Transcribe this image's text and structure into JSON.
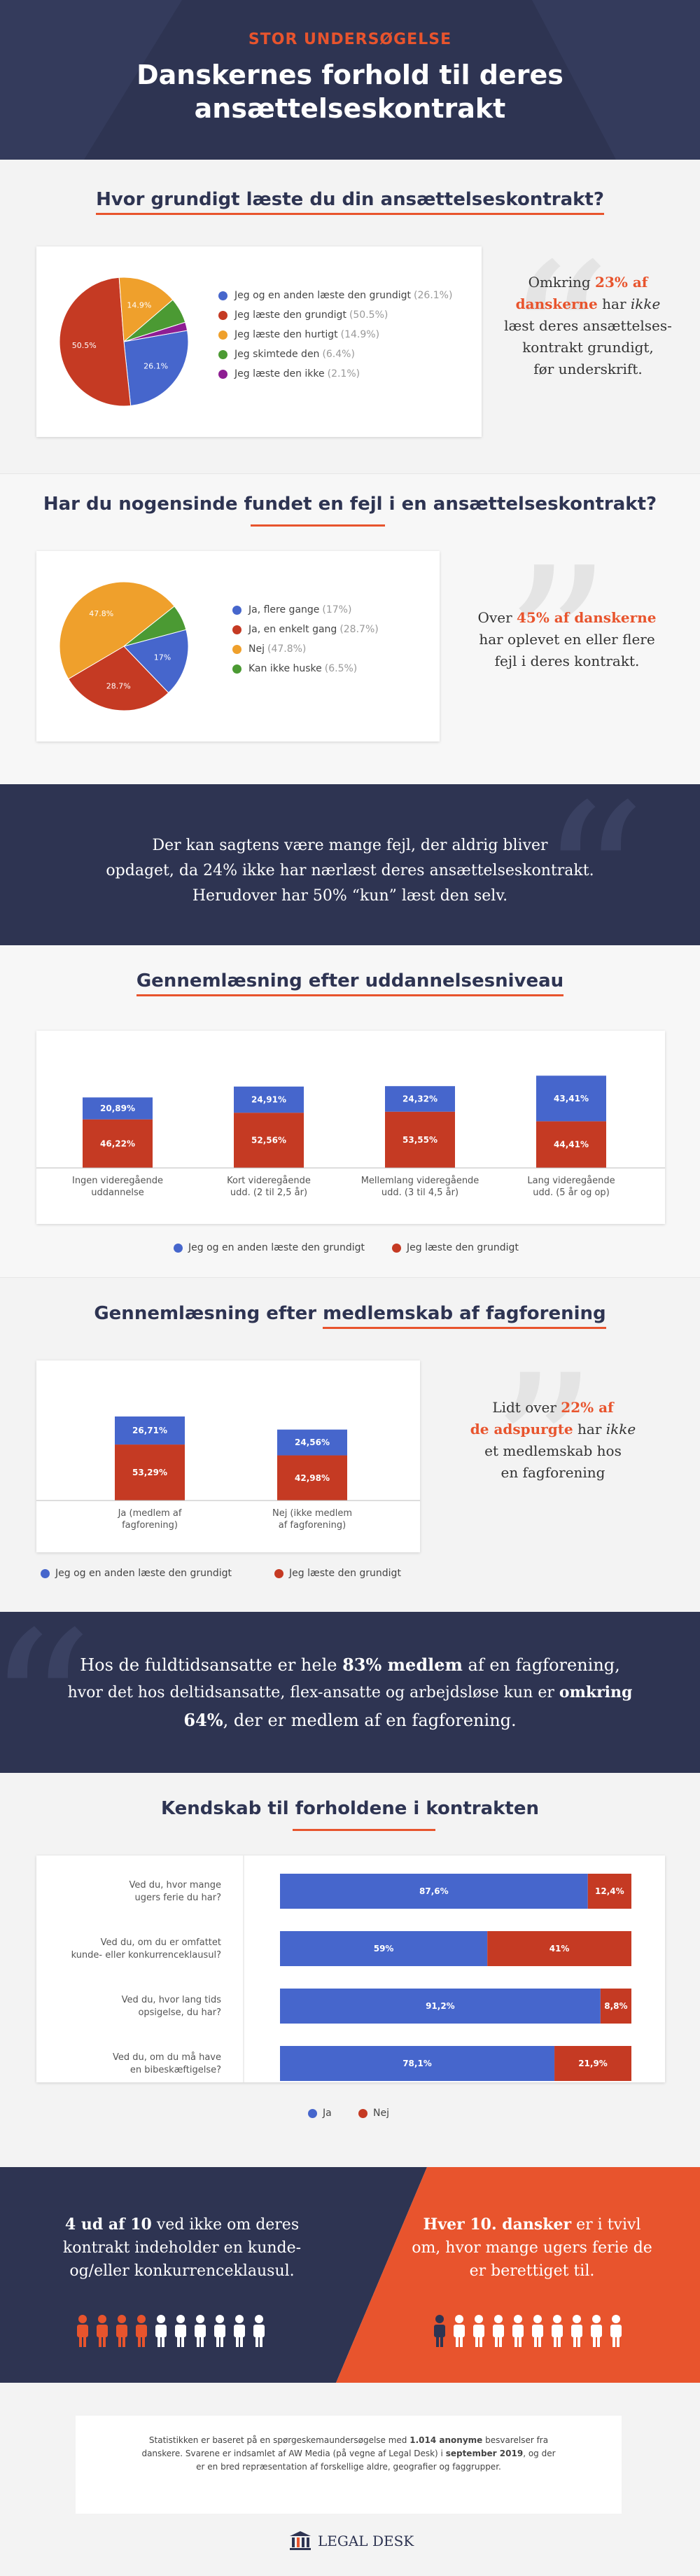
{
  "header": {
    "kicker": "STOR UNDERSØGELSE",
    "title_line1": "Danskernes forhold til deres",
    "title_line2": "ansættelseskontrakt"
  },
  "s1": {
    "title": "Hvor grundigt læste du din ansættelseskontrakt?",
    "quote_pre": "Omkring ",
    "quote_hl1": "23% af",
    "quote_hl2": "danskerne",
    "quote_mid": " har ",
    "quote_it": "ikke",
    "quote_l3": "læst deres ansættelses-",
    "quote_l4": "kontrakt grundigt,",
    "quote_l5": "før underskrift."
  },
  "s2": {
    "title": "Har du nogensinde fundet en fejl i en ansættelseskontrakt?",
    "quote_pre": "Over ",
    "quote_hl": "45% af danskerne",
    "quote_l2": "har oplevet en eller flere",
    "quote_l3": "fejl i deres kontrakt."
  },
  "band1": {
    "l1": "Der kan sagtens være mange fejl, der aldrig bliver",
    "l2": "opdaget, da 24% ikke har nærlæst deres ansættelseskontrakt.",
    "l3": "Herudover har 50% “kun” læst den selv."
  },
  "s3": {
    "title": "Gennemlæsning efter uddannelsesniveau",
    "cat_lines": [
      [
        "Ingen videregående",
        "uddannelse"
      ],
      [
        "Kort videregående",
        "udd. (2 til 2,5 år)"
      ],
      [
        "Mellemlang videregående",
        "udd. (3 til 4,5 år)"
      ],
      [
        "Lang videregående",
        "udd. (5 år og op)"
      ]
    ]
  },
  "s4": {
    "title_pre": "Gennemlæsning efter ",
    "title_ul": "medlemskab af fagforening",
    "cat_lines": [
      [
        "Ja (medlem af",
        "fagforening)"
      ],
      [
        "Nej (ikke medlem",
        "af fagforening)"
      ]
    ],
    "quote_pre": "Lidt over ",
    "quote_hl1": "22% af",
    "quote_hl2": "de adspurgte",
    "quote_mid": " har ",
    "quote_it": "ikke",
    "quote_l3": "et medlemskab hos",
    "quote_l4": "en fagforening"
  },
  "band2": {
    "l1_pre": "Hos de fuldtidsansatte er hele ",
    "l1_b": "83% medlem",
    "l1_post": " af en fagforening,",
    "l2_pre": "hvor det hos deltidsansatte, flex-ansatte og arbejdsløse kun er ",
    "l2_b": "omkring",
    "l3_b": "64%",
    "l3_post": ", der er medlem af en fagforening."
  },
  "s5": {
    "title": "Kendskab til forholdene i kontrakten",
    "row_lines": [
      [
        "Ved du, hvor mange",
        "ugers ferie du har?"
      ],
      [
        "Ved du, om du er omfattet",
        "kunde- eller konkurrenceklausul?"
      ],
      [
        "Ved du, hvor lang tids",
        "opsigelse, du har?"
      ],
      [
        "Ved du, om du må have",
        "en bibeskæftigelse?"
      ]
    ]
  },
  "bottom": {
    "left_b": "4 ud af 10",
    "left_rest": " ved ikke om deres",
    "left_l2": "kontrakt indeholder en kunde-",
    "left_l3": "og/eller konkurrenceklausul.",
    "right_b": "Hver 10. dansker",
    "right_rest": " er i tvivl",
    "right_l2": "om, hvor mange ugers ferie de",
    "right_l3": "er berettiget til.",
    "left_people": 10,
    "left_highlight": 4,
    "right_people": 10,
    "right_highlight": 1
  },
  "footer": {
    "l1_pre": "Statistikken er baseret på en spørgeskemaundersøgelse med ",
    "l1_b": "1.014 anonyme",
    "l1_post": " besvarelser fra",
    "l2_pre": "danskere. Svarene er indsamlet af AW Media (på vegne af Legal Desk) i ",
    "l2_b": "september 2019",
    "l2_post": ", og der",
    "l3": "er en bred repræsentation af forskellige aldre, geografier og faggrupper.",
    "logo": "LEGAL DESK"
  },
  "colors": {
    "navy": "#2e3452",
    "orange": "#e8542d",
    "blue": "#4666cc",
    "red": "#c53a23",
    "yellow": "#efa02c",
    "green": "#4b9a33",
    "purple": "#8e1d93"
  },
  "chart_data": [
    {
      "type": "pie",
      "title": "Hvor grundigt læste du din ansættelseskontrakt?",
      "slices": [
        {
          "label": "Jeg og en anden læste den grundigt",
          "value": 26.1,
          "display": "26.1%",
          "color": "#4666cc"
        },
        {
          "label": "Jeg læste den grundigt",
          "value": 50.5,
          "display": "50.5%",
          "color": "#c53a23"
        },
        {
          "label": "Jeg læste den hurtigt",
          "value": 14.9,
          "display": "14.9%",
          "color": "#efa02c"
        },
        {
          "label": "Jeg skimtede den",
          "value": 6.4,
          "display": "6.4%",
          "color": "#4b9a33"
        },
        {
          "label": "Jeg læste den ikke",
          "value": 2.1,
          "display": "2.1%",
          "color": "#8e1d93"
        }
      ]
    },
    {
      "type": "pie",
      "title": "Har du nogensinde fundet en fejl i en ansættelseskontrakt?",
      "slices": [
        {
          "label": "Ja, flere gange",
          "value": 17,
          "display": "17%",
          "color": "#4666cc"
        },
        {
          "label": "Ja, en enkelt gang",
          "value": 28.7,
          "display": "28.7%",
          "color": "#c53a23"
        },
        {
          "label": "Nej",
          "value": 47.8,
          "display": "47.8%",
          "color": "#efa02c"
        },
        {
          "label": "Kan ikke huske",
          "value": 6.5,
          "display": "6.5%",
          "color": "#4b9a33"
        }
      ]
    },
    {
      "type": "bar",
      "stacked": true,
      "title": "Gennemlæsning efter uddannelsesniveau",
      "categories": [
        "Ingen videregående uddannelse",
        "Kort videregående udd. (2 til 2,5 år)",
        "Mellemlang videregående udd. (3 til 4,5 år)",
        "Lang videregående udd. (5 år og op)"
      ],
      "series": [
        {
          "name": "Jeg læste den grundigt",
          "values": [
            46.22,
            52.56,
            53.55,
            44.41
          ],
          "labels": [
            "46,22%",
            "52,56%",
            "53,55%",
            "44,41%"
          ],
          "color": "#c53a23"
        },
        {
          "name": "Jeg og en anden læste den grundigt",
          "values": [
            20.89,
            24.91,
            24.32,
            43.41
          ],
          "labels": [
            "20,89%",
            "24,91%",
            "24,32%",
            "43,41%"
          ],
          "color": "#4666cc"
        }
      ]
    },
    {
      "type": "bar",
      "stacked": true,
      "title": "Gennemlæsning efter medlemskab af fagforening",
      "categories": [
        "Ja (medlem af fagforening)",
        "Nej (ikke medlem af fagforening)"
      ],
      "series": [
        {
          "name": "Jeg læste den grundigt",
          "values": [
            53.29,
            42.98
          ],
          "labels": [
            "53,29%",
            "42,98%"
          ],
          "color": "#c53a23"
        },
        {
          "name": "Jeg og en anden læste den grundigt",
          "values": [
            26.71,
            24.56
          ],
          "labels": [
            "26,71%",
            "24,56%"
          ],
          "color": "#4666cc"
        }
      ]
    },
    {
      "type": "bar",
      "orientation": "horizontal",
      "stacked": true,
      "title": "Kendskab til forholdene i kontrakten",
      "categories": [
        "Ved du, hvor mange ugers ferie du har?",
        "Ved du, om du er omfattet kunde- eller konkurrenceklausul?",
        "Ved du, hvor lang tids opsigelse, du har?",
        "Ved du, om du må have en bibeskæftigelse?"
      ],
      "series": [
        {
          "name": "Ja",
          "values": [
            87.6,
            59,
            91.2,
            78.1
          ],
          "labels": [
            "87,6%",
            "59%",
            "91,2%",
            "78,1%"
          ],
          "color": "#4666cc"
        },
        {
          "name": "Nej",
          "values": [
            12.4,
            41,
            8.8,
            21.9
          ],
          "labels": [
            "12,4%",
            "41%",
            "8,8%",
            "21,9%"
          ],
          "color": "#c53a23"
        }
      ]
    }
  ]
}
